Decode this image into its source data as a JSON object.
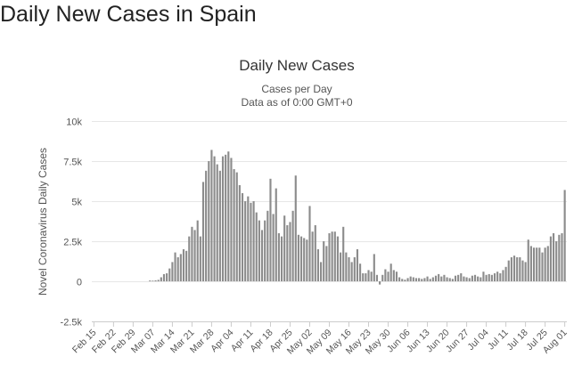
{
  "page": {
    "heading": "Daily New Cases in Spain"
  },
  "chart_data": {
    "type": "bar",
    "title": "Daily New Cases",
    "subtitle": [
      "Cases per Day",
      "Data as of 0:00 GMT+0"
    ],
    "xlabel": "",
    "ylabel": "Novel Coronavirus Daily Cases",
    "ylim": [
      -2500,
      10000
    ],
    "yticks": [
      -2500,
      0,
      2500,
      5000,
      7500,
      10000
    ],
    "ytick_labels": [
      "-2.5k",
      "0",
      "2.5k",
      "5k",
      "7.5k",
      "10k"
    ],
    "xtick_labels": [
      "Feb 15",
      "Feb 22",
      "Feb 29",
      "Mar 07",
      "Mar 14",
      "Mar 21",
      "Mar 28",
      "Apr 04",
      "Apr 11",
      "Apr 18",
      "Apr 25",
      "May 02",
      "May 09",
      "May 16",
      "May 23",
      "May 30",
      "Jun 06",
      "Jun 13",
      "Jun 20",
      "Jun 27",
      "Jul 04",
      "Jul 11",
      "Jul 18",
      "Jul 25",
      "Aug 01"
    ],
    "legend": "none",
    "grid": "horizontal",
    "bar_color": "#8c8c8c",
    "first_date": "Feb 15",
    "series": [
      {
        "values": [
          0,
          0,
          0,
          0,
          0,
          0,
          0,
          0,
          0,
          0,
          0,
          0,
          0,
          0,
          0,
          0,
          0,
          0,
          0,
          0,
          50,
          40,
          60,
          90,
          250,
          450,
          500,
          800,
          1200,
          1800,
          1500,
          1700,
          2000,
          1900,
          2800,
          3400,
          3200,
          3800,
          2800,
          6200,
          6900,
          7500,
          8200,
          7800,
          7300,
          6900,
          7800,
          7900,
          8100,
          7700,
          7000,
          6800,
          6000,
          5500,
          5000,
          5300,
          4900,
          5000,
          4300,
          3800,
          3200,
          3800,
          4400,
          6400,
          4200,
          5800,
          3000,
          2800,
          4100,
          3500,
          3700,
          4400,
          6600,
          2900,
          2800,
          2700,
          2600,
          4700,
          3100,
          3500,
          2000,
          1200,
          2500,
          2200,
          3000,
          3100,
          3100,
          2800,
          1800,
          3400,
          1800,
          1500,
          1200,
          1500,
          2000,
          1100,
          500,
          500,
          700,
          600,
          1700,
          400,
          -200,
          400,
          750,
          600,
          1100,
          700,
          600,
          250,
          150,
          100,
          200,
          300,
          250,
          200,
          200,
          150,
          200,
          300,
          150,
          250,
          350,
          450,
          300,
          400,
          250,
          200,
          150,
          350,
          400,
          500,
          300,
          250,
          200,
          350,
          400,
          300,
          250,
          600,
          400,
          450,
          400,
          500,
          600,
          500,
          700,
          900,
          1300,
          1500,
          1600,
          1500,
          1500,
          1300,
          1200,
          2600,
          2200,
          2100,
          2100,
          2100,
          1800,
          2100,
          2200,
          2800,
          3000,
          2500,
          2900,
          3000,
          5700
        ]
      }
    ]
  }
}
